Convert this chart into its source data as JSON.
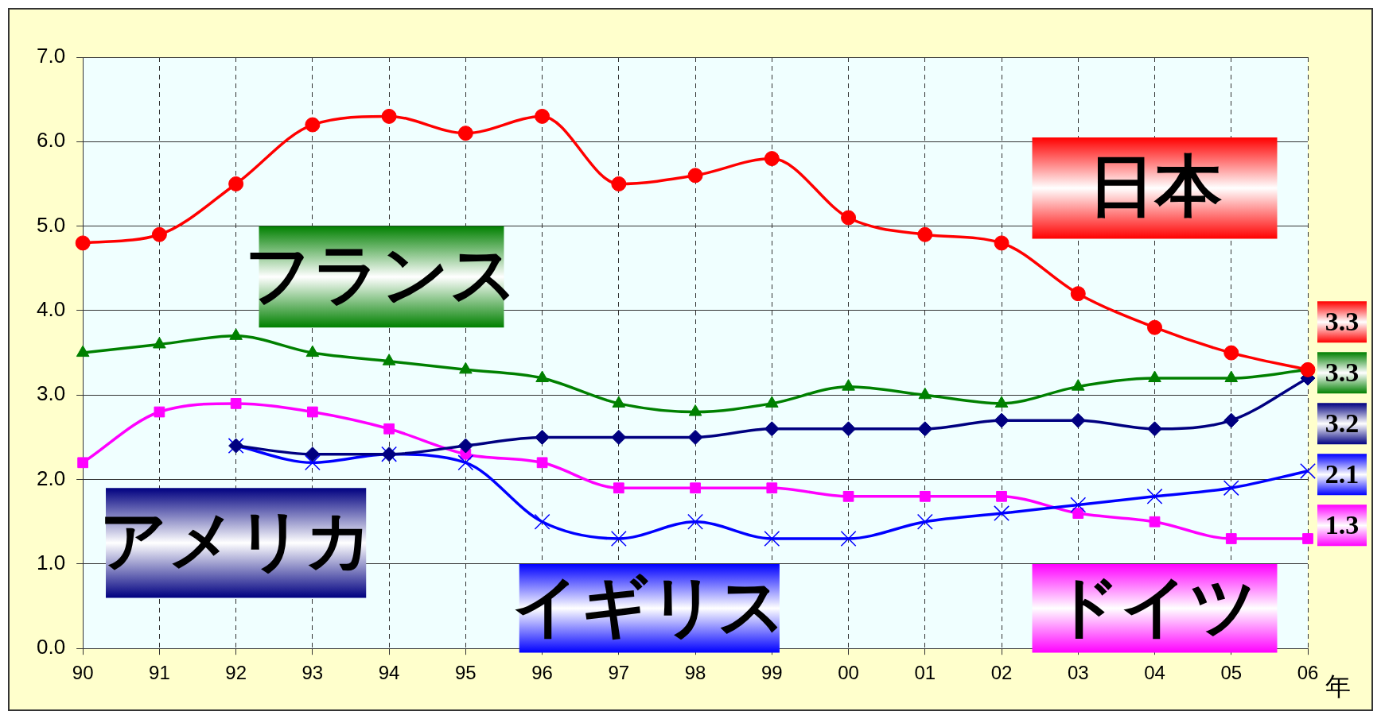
{
  "chart_data": {
    "type": "line",
    "categories": [
      "90",
      "91",
      "92",
      "93",
      "94",
      "95",
      "96",
      "97",
      "98",
      "99",
      "00",
      "01",
      "02",
      "03",
      "04",
      "05",
      "06"
    ],
    "xlabel": "年",
    "ylim": [
      0,
      7
    ],
    "yticks": [
      {
        "value": 0,
        "label": "0.0"
      },
      {
        "value": 1,
        "label": "1.0"
      },
      {
        "value": 2,
        "label": "2.0"
      },
      {
        "value": 3,
        "label": "3.0"
      },
      {
        "value": 4,
        "label": "4.0"
      },
      {
        "value": 5,
        "label": "5.0"
      },
      {
        "value": 6,
        "label": "6.0"
      },
      {
        "value": 7,
        "label": "7.0"
      }
    ],
    "grid": true,
    "legend": false,
    "series": [
      {
        "name": "日本",
        "color": "#ff0000",
        "marker": "circle",
        "values": [
          4.8,
          4.9,
          5.5,
          6.2,
          6.3,
          6.1,
          6.3,
          5.5,
          5.6,
          5.8,
          5.1,
          4.9,
          4.8,
          4.2,
          3.8,
          3.5,
          3.3
        ],
        "value_labels": [
          null,
          null,
          null,
          null,
          null,
          null,
          null,
          null,
          null,
          null,
          null,
          null,
          null,
          null,
          null,
          null,
          "3.3"
        ]
      },
      {
        "name": "フランス",
        "color": "#008000",
        "marker": "triangle",
        "values": [
          3.5,
          3.6,
          3.7,
          3.5,
          3.4,
          3.3,
          3.2,
          2.9,
          2.8,
          2.9,
          3.1,
          3.0,
          2.9,
          3.1,
          3.2,
          3.2,
          3.3
        ],
        "value_labels": [
          null,
          null,
          null,
          null,
          null,
          null,
          null,
          null,
          null,
          null,
          null,
          null,
          null,
          null,
          null,
          null,
          "3.3"
        ]
      },
      {
        "name": "アメリカ",
        "color": "#000080",
        "marker": "diamond",
        "values": [
          null,
          null,
          2.4,
          2.3,
          2.3,
          2.4,
          2.5,
          2.5,
          2.5,
          2.6,
          2.6,
          2.6,
          2.7,
          2.7,
          2.6,
          2.7,
          3.2
        ],
        "value_labels": [
          null,
          null,
          null,
          null,
          null,
          null,
          null,
          null,
          null,
          null,
          null,
          null,
          null,
          null,
          null,
          null,
          "3.2"
        ]
      },
      {
        "name": "イギリス",
        "color": "#0000ff",
        "marker": "cross",
        "values": [
          null,
          null,
          2.4,
          2.2,
          2.3,
          2.2,
          1.5,
          1.3,
          1.5,
          1.3,
          1.3,
          1.5,
          1.6,
          1.7,
          1.8,
          1.9,
          2.1
        ],
        "value_labels": [
          null,
          null,
          null,
          null,
          null,
          null,
          null,
          null,
          null,
          null,
          null,
          null,
          null,
          null,
          null,
          null,
          "2.1"
        ]
      },
      {
        "name": "ドイツ",
        "color": "#ff00ff",
        "marker": "square",
        "values": [
          2.2,
          2.8,
          2.9,
          2.8,
          2.6,
          2.3,
          2.2,
          1.9,
          1.9,
          1.9,
          1.8,
          1.8,
          1.8,
          1.6,
          1.5,
          1.3,
          1.3
        ],
        "value_labels": [
          null,
          null,
          null,
          null,
          null,
          null,
          null,
          null,
          null,
          null,
          null,
          null,
          null,
          null,
          null,
          null,
          "1.3"
        ]
      }
    ]
  }
}
